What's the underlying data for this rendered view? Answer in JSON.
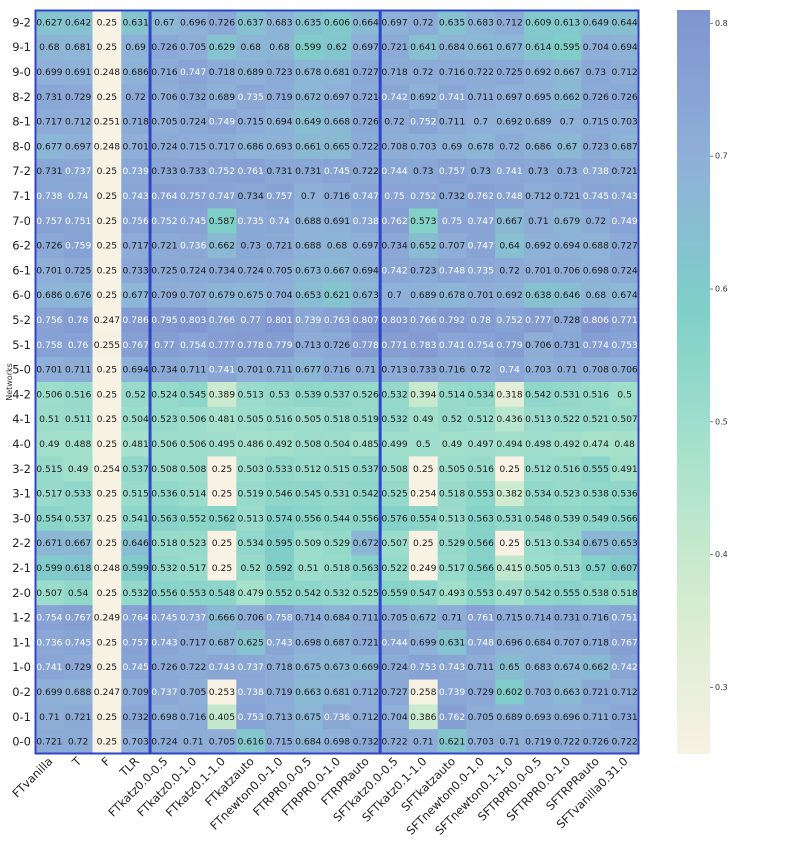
{
  "chart_data": {
    "type": "heatmap",
    "ylabel": "Networks",
    "xlabel": "",
    "title": "",
    "x_categories": [
      "FTvanilla",
      "T",
      "F",
      "TLR",
      "FTkatz0.0-0.5",
      "FTkatz0.0-1.0",
      "FTkatz0.1-1.0",
      "FTkatzauto",
      "FTnewton0.0-1.0",
      "FTRPR0.0-0.5",
      "FTRPR0.0-1.0",
      "FTRPRauto",
      "SFTkatz0.0-0.5",
      "SFTkatz0.1-1.0",
      "SFTkatzauto",
      "SFTnewton0.0-1.0",
      "SFTnewton0.1-1.0",
      "SFTRPR0.0-0.5",
      "SFTRPR0.0-1.0",
      "SFTRPRauto",
      "SFTvanilla0.31.0"
    ],
    "y_categories": [
      "9-2",
      "9-1",
      "9-0",
      "8-2",
      "8-1",
      "8-0",
      "7-2",
      "7-1",
      "7-0",
      "6-2",
      "6-1",
      "6-0",
      "5-2",
      "5-1",
      "5-0",
      "4-2",
      "4-1",
      "4-0",
      "3-2",
      "3-1",
      "3-0",
      "2-2",
      "2-1",
      "2-0",
      "1-2",
      "1-1",
      "1-0",
      "0-2",
      "0-1",
      "0-0"
    ],
    "values": [
      [
        0.627,
        0.642,
        0.25,
        0.631,
        0.67,
        0.696,
        0.726,
        0.637,
        0.683,
        0.635,
        0.606,
        0.664,
        0.697,
        0.72,
        0.635,
        0.683,
        0.712,
        0.609,
        0.613,
        0.649,
        0.644
      ],
      [
        0.68,
        0.681,
        0.25,
        0.69,
        0.726,
        0.705,
        0.629,
        0.68,
        0.68,
        0.599,
        0.62,
        0.697,
        0.721,
        0.641,
        0.684,
        0.661,
        0.677,
        0.614,
        0.595,
        0.704,
        0.694
      ],
      [
        0.699,
        0.691,
        0.248,
        0.686,
        0.716,
        0.747,
        0.718,
        0.689,
        0.723,
        0.678,
        0.681,
        0.727,
        0.718,
        0.72,
        0.716,
        0.722,
        0.725,
        0.692,
        0.667,
        0.73,
        0.712
      ],
      [
        0.731,
        0.729,
        0.25,
        0.72,
        0.706,
        0.732,
        0.689,
        0.735,
        0.719,
        0.672,
        0.697,
        0.721,
        0.742,
        0.692,
        0.741,
        0.711,
        0.697,
        0.695,
        0.662,
        0.726,
        0.726
      ],
      [
        0.717,
        0.712,
        0.251,
        0.718,
        0.705,
        0.724,
        0.749,
        0.715,
        0.694,
        0.649,
        0.668,
        0.726,
        0.72,
        0.752,
        0.711,
        0.7,
        0.692,
        0.689,
        0.7,
        0.715,
        0.703
      ],
      [
        0.677,
        0.697,
        0.248,
        0.701,
        0.724,
        0.715,
        0.717,
        0.686,
        0.693,
        0.661,
        0.665,
        0.722,
        0.708,
        0.703,
        0.69,
        0.678,
        0.72,
        0.686,
        0.67,
        0.723,
        0.687
      ],
      [
        0.731,
        0.737,
        0.25,
        0.739,
        0.733,
        0.733,
        0.752,
        0.761,
        0.731,
        0.731,
        0.745,
        0.722,
        0.744,
        0.73,
        0.757,
        0.73,
        0.741,
        0.73,
        0.73,
        0.738,
        0.721
      ],
      [
        0.738,
        0.74,
        0.25,
        0.743,
        0.764,
        0.757,
        0.747,
        0.734,
        0.757,
        0.7,
        0.716,
        0.747,
        0.75,
        0.752,
        0.732,
        0.762,
        0.748,
        0.712,
        0.721,
        0.745,
        0.743
      ],
      [
        0.757,
        0.751,
        0.25,
        0.756,
        0.752,
        0.745,
        0.587,
        0.735,
        0.74,
        0.688,
        0.691,
        0.738,
        0.762,
        0.573,
        0.75,
        0.747,
        0.667,
        0.71,
        0.679,
        0.72,
        0.749
      ],
      [
        0.726,
        0.759,
        0.25,
        0.717,
        0.721,
        0.736,
        0.662,
        0.73,
        0.721,
        0.688,
        0.68,
        0.697,
        0.734,
        0.652,
        0.707,
        0.747,
        0.64,
        0.692,
        0.694,
        0.688,
        0.727
      ],
      [
        0.701,
        0.725,
        0.25,
        0.733,
        0.725,
        0.724,
        0.734,
        0.724,
        0.705,
        0.673,
        0.667,
        0.694,
        0.742,
        0.723,
        0.748,
        0.735,
        0.72,
        0.701,
        0.706,
        0.698,
        0.724
      ],
      [
        0.686,
        0.676,
        0.25,
        0.677,
        0.709,
        0.707,
        0.679,
        0.675,
        0.704,
        0.653,
        0.621,
        0.673,
        0.7,
        0.689,
        0.678,
        0.701,
        0.692,
        0.638,
        0.646,
        0.68,
        0.674
      ],
      [
        0.756,
        0.78,
        0.247,
        0.786,
        0.795,
        0.803,
        0.766,
        0.77,
        0.801,
        0.739,
        0.763,
        0.807,
        0.803,
        0.766,
        0.792,
        0.78,
        0.752,
        0.777,
        0.728,
        0.806,
        0.771
      ],
      [
        0.758,
        0.76,
        0.255,
        0.767,
        0.77,
        0.754,
        0.777,
        0.778,
        0.779,
        0.713,
        0.726,
        0.778,
        0.771,
        0.783,
        0.741,
        0.754,
        0.779,
        0.706,
        0.731,
        0.774,
        0.753
      ],
      [
        0.701,
        0.711,
        0.25,
        0.694,
        0.734,
        0.711,
        0.741,
        0.701,
        0.711,
        0.677,
        0.716,
        0.71,
        0.713,
        0.733,
        0.716,
        0.72,
        0.74,
        0.703,
        0.71,
        0.708,
        0.706
      ],
      [
        0.506,
        0.516,
        0.25,
        0.52,
        0.524,
        0.545,
        0.389,
        0.513,
        0.53,
        0.539,
        0.537,
        0.526,
        0.532,
        0.394,
        0.514,
        0.534,
        0.318,
        0.542,
        0.531,
        0.516,
        0.5
      ],
      [
        0.51,
        0.511,
        0.25,
        0.504,
        0.523,
        0.506,
        0.481,
        0.505,
        0.516,
        0.505,
        0.518,
        0.519,
        0.532,
        0.49,
        0.52,
        0.512,
        0.436,
        0.513,
        0.522,
        0.521,
        0.507
      ],
      [
        0.49,
        0.488,
        0.25,
        0.481,
        0.506,
        0.506,
        0.495,
        0.486,
        0.492,
        0.508,
        0.504,
        0.485,
        0.499,
        0.5,
        0.49,
        0.497,
        0.494,
        0.498,
        0.492,
        0.474,
        0.48
      ],
      [
        0.515,
        0.49,
        0.254,
        0.537,
        0.508,
        0.508,
        0.25,
        0.503,
        0.533,
        0.512,
        0.515,
        0.537,
        0.508,
        0.25,
        0.505,
        0.516,
        0.25,
        0.512,
        0.516,
        0.555,
        0.491
      ],
      [
        0.517,
        0.533,
        0.25,
        0.515,
        0.536,
        0.514,
        0.25,
        0.519,
        0.546,
        0.545,
        0.531,
        0.542,
        0.525,
        0.254,
        0.518,
        0.553,
        0.382,
        0.534,
        0.523,
        0.538,
        0.536
      ],
      [
        0.554,
        0.537,
        0.25,
        0.541,
        0.563,
        0.552,
        0.562,
        0.513,
        0.574,
        0.556,
        0.544,
        0.556,
        0.576,
        0.554,
        0.513,
        0.563,
        0.531,
        0.548,
        0.539,
        0.549,
        0.566
      ],
      [
        0.671,
        0.667,
        0.25,
        0.646,
        0.518,
        0.523,
        0.25,
        0.534,
        0.595,
        0.509,
        0.529,
        0.672,
        0.507,
        0.25,
        0.529,
        0.566,
        0.25,
        0.513,
        0.534,
        0.675,
        0.653
      ],
      [
        0.599,
        0.618,
        0.248,
        0.599,
        0.532,
        0.517,
        0.25,
        0.52,
        0.592,
        0.51,
        0.518,
        0.563,
        0.522,
        0.249,
        0.517,
        0.566,
        0.415,
        0.505,
        0.513,
        0.57,
        0.607
      ],
      [
        0.507,
        0.54,
        0.25,
        0.532,
        0.556,
        0.553,
        0.548,
        0.479,
        0.552,
        0.542,
        0.532,
        0.525,
        0.559,
        0.547,
        0.493,
        0.553,
        0.497,
        0.542,
        0.555,
        0.538,
        0.518
      ],
      [
        0.754,
        0.767,
        0.249,
        0.764,
        0.745,
        0.737,
        0.666,
        0.706,
        0.758,
        0.714,
        0.684,
        0.711,
        0.705,
        0.672,
        0.71,
        0.761,
        0.715,
        0.714,
        0.731,
        0.716,
        0.751
      ],
      [
        0.736,
        0.745,
        0.25,
        0.757,
        0.743,
        0.717,
        0.687,
        0.625,
        0.743,
        0.698,
        0.687,
        0.721,
        0.744,
        0.699,
        0.631,
        0.748,
        0.696,
        0.684,
        0.707,
        0.718,
        0.767
      ],
      [
        0.741,
        0.729,
        0.25,
        0.745,
        0.726,
        0.722,
        0.743,
        0.737,
        0.718,
        0.675,
        0.673,
        0.669,
        0.724,
        0.753,
        0.743,
        0.711,
        0.65,
        0.683,
        0.674,
        0.662,
        0.742
      ],
      [
        0.699,
        0.688,
        0.247,
        0.709,
        0.737,
        0.705,
        0.253,
        0.738,
        0.719,
        0.663,
        0.681,
        0.712,
        0.727,
        0.258,
        0.739,
        0.729,
        0.602,
        0.703,
        0.663,
        0.721,
        0.712
      ],
      [
        0.71,
        0.721,
        0.25,
        0.732,
        0.698,
        0.716,
        0.405,
        0.753,
        0.713,
        0.675,
        0.736,
        0.712,
        0.704,
        0.386,
        0.762,
        0.705,
        0.689,
        0.693,
        0.696,
        0.711,
        0.731
      ],
      [
        0.721,
        0.72,
        0.25,
        0.703,
        0.724,
        0.71,
        0.705,
        0.616,
        0.715,
        0.684,
        0.698,
        0.732,
        0.722,
        0.71,
        0.621,
        0.703,
        0.71,
        0.719,
        0.722,
        0.726,
        0.722
      ]
    ],
    "colorbar": {
      "min": 0.25,
      "max": 0.81,
      "ticks": [
        "0.3",
        "0.4",
        "0.5",
        "0.6",
        "0.7",
        "0.8"
      ],
      "tick_values": [
        0.3,
        0.4,
        0.5,
        0.6,
        0.7,
        0.8
      ]
    },
    "colormap": [
      "#f8f2e4",
      "#d6ecd0",
      "#a8e2cc",
      "#7fcfc8",
      "#8fb0d8",
      "#7f94cf"
    ],
    "group_boxes_color": "#2f45c8",
    "group_boxes_columns": [
      [
        0,
        3
      ],
      [
        4,
        11
      ],
      [
        12,
        20
      ]
    ]
  }
}
